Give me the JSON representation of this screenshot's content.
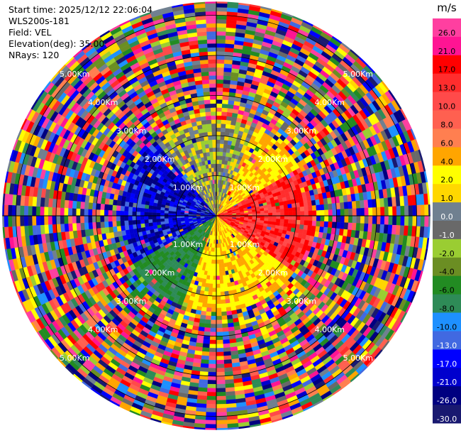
{
  "info": {
    "start_time": "Start time: 2025/12/12 22:06:04",
    "instrument": "WLS200s-181",
    "field": "Field: VEL",
    "elevation": "Elevation(deg): 35.00",
    "nrays": "NRays: 120"
  },
  "colorbar": {
    "unit": "m/s",
    "ticks": [
      "26.0",
      "21.0",
      "17.0",
      "13.0",
      "10.0",
      "8.0",
      "6.0",
      "4.0",
      "2.0",
      "1.0",
      "0.0",
      "-1.0",
      "-2.0",
      "-4.0",
      "-6.0",
      "-8.0",
      "-10.0",
      "-13.0",
      "-17.0",
      "-21.0",
      "-26.0",
      "-30.0"
    ],
    "colors": [
      "#ff3fa0",
      "#ff1493",
      "#ff0000",
      "#ff2d2d",
      "#ff4a4a",
      "#ff6050",
      "#ff7f50",
      "#ffa500",
      "#ffff00",
      "#ffd700",
      "#708090",
      "#696969",
      "#9acd32",
      "#6b8e23",
      "#228b22",
      "#2e8b57",
      "#1e90ff",
      "#4169e1",
      "#0000ff",
      "#0000cd",
      "#000080",
      "#191970"
    ]
  },
  "chart_data": {
    "type": "ppi",
    "field": "VEL",
    "unit": "m/s",
    "nrays": 120,
    "elevation_deg": 35.0,
    "range_rings_km": [
      1.0,
      2.0,
      3.0,
      4.0,
      5.0
    ],
    "range_labels": [
      "1.00Km",
      "2.00Km",
      "3.00Km",
      "4.00Km",
      "5.00Km"
    ],
    "max_range_km": 5.35,
    "near_field": {
      "radius_km": 2.4,
      "description": "coherent velocity region",
      "east_sector_ms": [
        10.0,
        21.0
      ],
      "northeast_sector_ms": [
        2.0,
        6.0
      ],
      "west_sector_ms": [
        -26.0,
        -10.0
      ],
      "southwest_sector_ms": [
        -8.0,
        -4.0
      ],
      "south_sector_ms": [
        2.0,
        6.0
      ]
    },
    "far_field": "noise, all color classes"
  }
}
